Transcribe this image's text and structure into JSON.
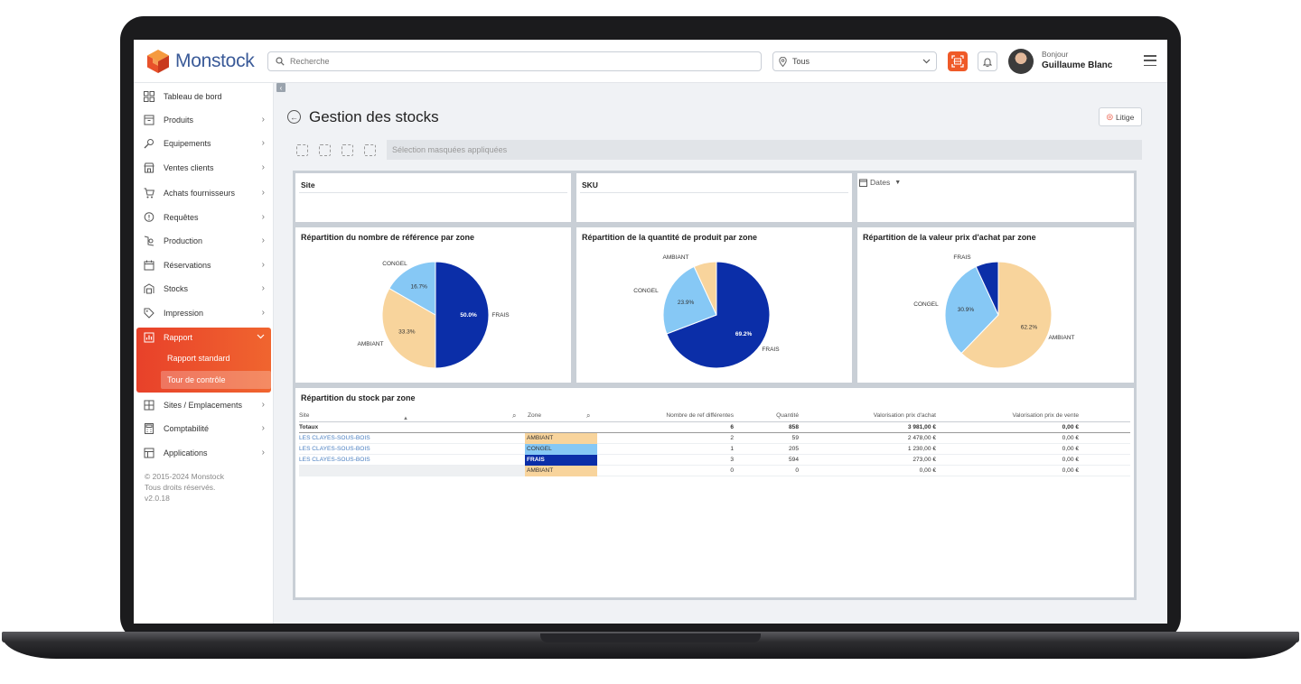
{
  "app": {
    "name": "Monstock"
  },
  "header": {
    "search_placeholder": "Recherche",
    "site_filter": "Tous",
    "greeting": "Bonjour",
    "user_name": "Guillaume Blanc"
  },
  "sidebar": {
    "items": [
      {
        "label": "Tableau de bord",
        "icon": "dashboard-icon"
      },
      {
        "label": "Produits",
        "icon": "box-icon"
      },
      {
        "label": "Equipements",
        "icon": "wrench-icon"
      },
      {
        "label": "Ventes clients",
        "icon": "store-icon"
      },
      {
        "label": "Achats fournisseurs",
        "icon": "cart-icon"
      },
      {
        "label": "Requêtes",
        "icon": "request-icon"
      },
      {
        "label": "Production",
        "icon": "production-icon"
      },
      {
        "label": "Réservations",
        "icon": "calendar-icon"
      },
      {
        "label": "Stocks",
        "icon": "warehouse-icon"
      },
      {
        "label": "Impression",
        "icon": "tag-icon"
      }
    ],
    "rapport": {
      "label": "Rapport",
      "subitems": [
        "Rapport standard",
        "Tour de contrôle"
      ]
    },
    "items_after": [
      {
        "label": "Sites / Emplacements",
        "icon": "location-icon"
      },
      {
        "label": "Comptabilité",
        "icon": "calculator-icon"
      },
      {
        "label": "Applications",
        "icon": "apps-icon"
      }
    ],
    "copyright": [
      "© 2015-2024 Monstock",
      "Tous droits réservés.",
      "v2.0.18"
    ]
  },
  "page": {
    "title": "Gestion des stocks",
    "litige_label": "Litige",
    "selection_info": "Sélection masquées appliquées"
  },
  "filters": {
    "site": "Site",
    "sku": "SKU",
    "dates": "Dates"
  },
  "colors": {
    "frais": "#0b2ea8",
    "congel": "#86c8f5",
    "ambiant": "#f8d49c",
    "accent": "#ef5a28"
  },
  "chart_data": [
    {
      "type": "pie",
      "title": "Répartition du nombre de référence par zone",
      "slices": [
        {
          "label": "FRAIS",
          "value": 50.0,
          "display": "50.0%"
        },
        {
          "label": "AMBIANT",
          "value": 33.3,
          "display": "33.3%"
        },
        {
          "label": "CONGEL",
          "value": 16.7,
          "display": "16.7%"
        }
      ]
    },
    {
      "type": "pie",
      "title": "Répartition de la quantité de produit par zone",
      "slices": [
        {
          "label": "FRAIS",
          "value": 69.2,
          "display": "69.2%"
        },
        {
          "label": "CONGEL",
          "value": 23.9,
          "display": "23.9%"
        },
        {
          "label": "AMBIANT",
          "value": 6.9,
          "display": ""
        }
      ]
    },
    {
      "type": "pie",
      "title": "Répartition de la valeur prix d'achat par zone",
      "slices": [
        {
          "label": "AMBIANT",
          "value": 62.2,
          "display": "62.2%"
        },
        {
          "label": "CONGEL",
          "value": 30.9,
          "display": "30.9%"
        },
        {
          "label": "FRAIS",
          "value": 6.9,
          "display": ""
        }
      ]
    }
  ],
  "stock_table": {
    "title": "Répartition du stock par zone",
    "columns": [
      "Site",
      "Zone",
      "Nombre de ref différentes",
      "Quantité",
      "Valorisation prix d'achat",
      "Valorisation prix de vente"
    ],
    "totals": {
      "label": "Totaux",
      "refs": "6",
      "qty": "858",
      "buy": "3 981,00 €",
      "sell": "0,00 €"
    },
    "rows": [
      {
        "site": "LES CLAYES-SOUS-BOIS",
        "zone": "AMBIANT",
        "refs": "2",
        "qty": "59",
        "buy": "2 478,00 €",
        "sell": "0,00 €"
      },
      {
        "site": "LES CLAYES-SOUS-BOIS",
        "zone": "CONGEL",
        "refs": "1",
        "qty": "205",
        "buy": "1 230,00 €",
        "sell": "0,00 €"
      },
      {
        "site": "LES CLAYES-SOUS-BOIS",
        "zone": "FRAIS",
        "refs": "3",
        "qty": "594",
        "buy": "273,00 €",
        "sell": "0,00 €"
      },
      {
        "site": "",
        "zone": "AMBIANT",
        "refs": "0",
        "qty": "0",
        "buy": "0,00 €",
        "sell": "0,00 €"
      }
    ]
  }
}
